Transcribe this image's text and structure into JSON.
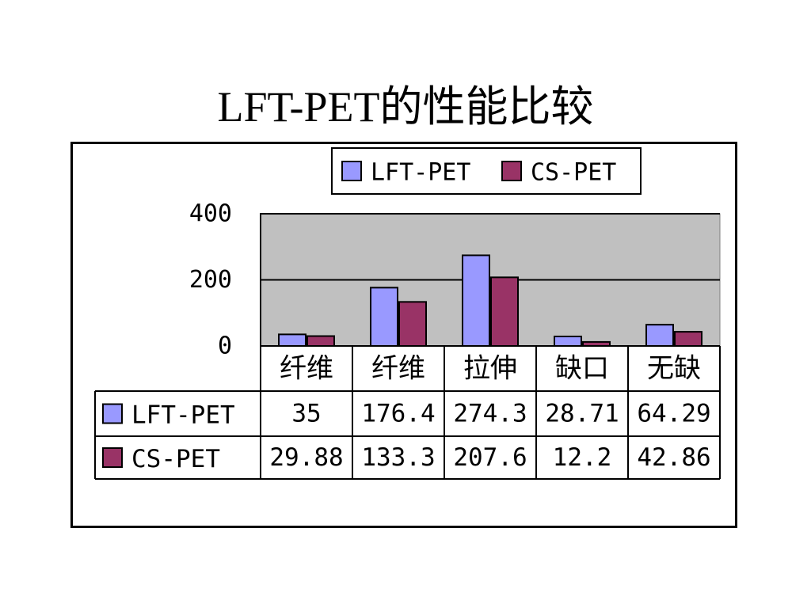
{
  "title": "LFT-PET的性能比较",
  "chart_data": {
    "type": "bar",
    "categories": [
      "纤维",
      "纤维",
      "拉伸",
      "缺口",
      "无缺"
    ],
    "series": [
      {
        "name": "LFT-PET",
        "values": [
          35,
          176.4,
          274.3,
          28.71,
          64.29
        ],
        "value_labels": [
          "35",
          "176.4",
          "274.3",
          "28.71",
          "64.29"
        ],
        "color": "#9999FF"
      },
      {
        "name": "CS-PET",
        "values": [
          29.88,
          133.3,
          207.6,
          12.2,
          42.86
        ],
        "value_labels": [
          "29.88",
          "133.3",
          "207.6",
          "12.2",
          "42.86"
        ],
        "color": "#993366"
      }
    ],
    "ylim": [
      0,
      400
    ],
    "yticks": [
      0,
      200,
      400
    ],
    "ytick_labels": [
      "0",
      "200",
      "400"
    ],
    "grid": true,
    "legend_position": "top",
    "data_table": true,
    "plot_background": "#C0C0C0"
  }
}
